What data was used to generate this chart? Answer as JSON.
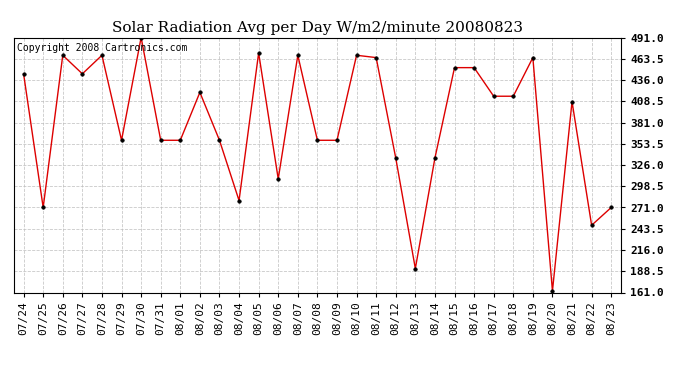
{
  "title": "Solar Radiation Avg per Day W/m2/minute 20080823",
  "copyright_text": "Copyright 2008 Cartronics.com",
  "x_labels": [
    "07/24",
    "07/25",
    "07/26",
    "07/27",
    "07/28",
    "07/29",
    "07/30",
    "07/31",
    "08/01",
    "08/02",
    "08/03",
    "08/04",
    "08/05",
    "08/06",
    "08/07",
    "08/08",
    "08/09",
    "08/10",
    "08/11",
    "08/12",
    "08/13",
    "08/14",
    "08/15",
    "08/16",
    "08/17",
    "08/18",
    "08/19",
    "08/20",
    "08/21",
    "08/22",
    "08/23"
  ],
  "y_values": [
    444,
    271,
    468,
    444,
    468,
    358,
    491,
    358,
    358,
    420,
    358,
    280,
    471,
    308,
    468,
    358,
    358,
    468,
    465,
    335,
    192,
    335,
    452,
    452,
    415,
    415,
    465,
    163,
    408,
    248,
    271
  ],
  "y_ticks": [
    161.0,
    188.5,
    216.0,
    243.5,
    271.0,
    298.5,
    326.0,
    353.5,
    381.0,
    408.5,
    436.0,
    463.5,
    491.0
  ],
  "y_min": 161.0,
  "y_max": 491.0,
  "line_color": "#dd0000",
  "marker_color": "#000000",
  "bg_color": "#ffffff",
  "plot_bg_color": "#ffffff",
  "grid_color": "#bbbbbb",
  "title_fontsize": 11,
  "copyright_fontsize": 7,
  "tick_fontsize": 8
}
